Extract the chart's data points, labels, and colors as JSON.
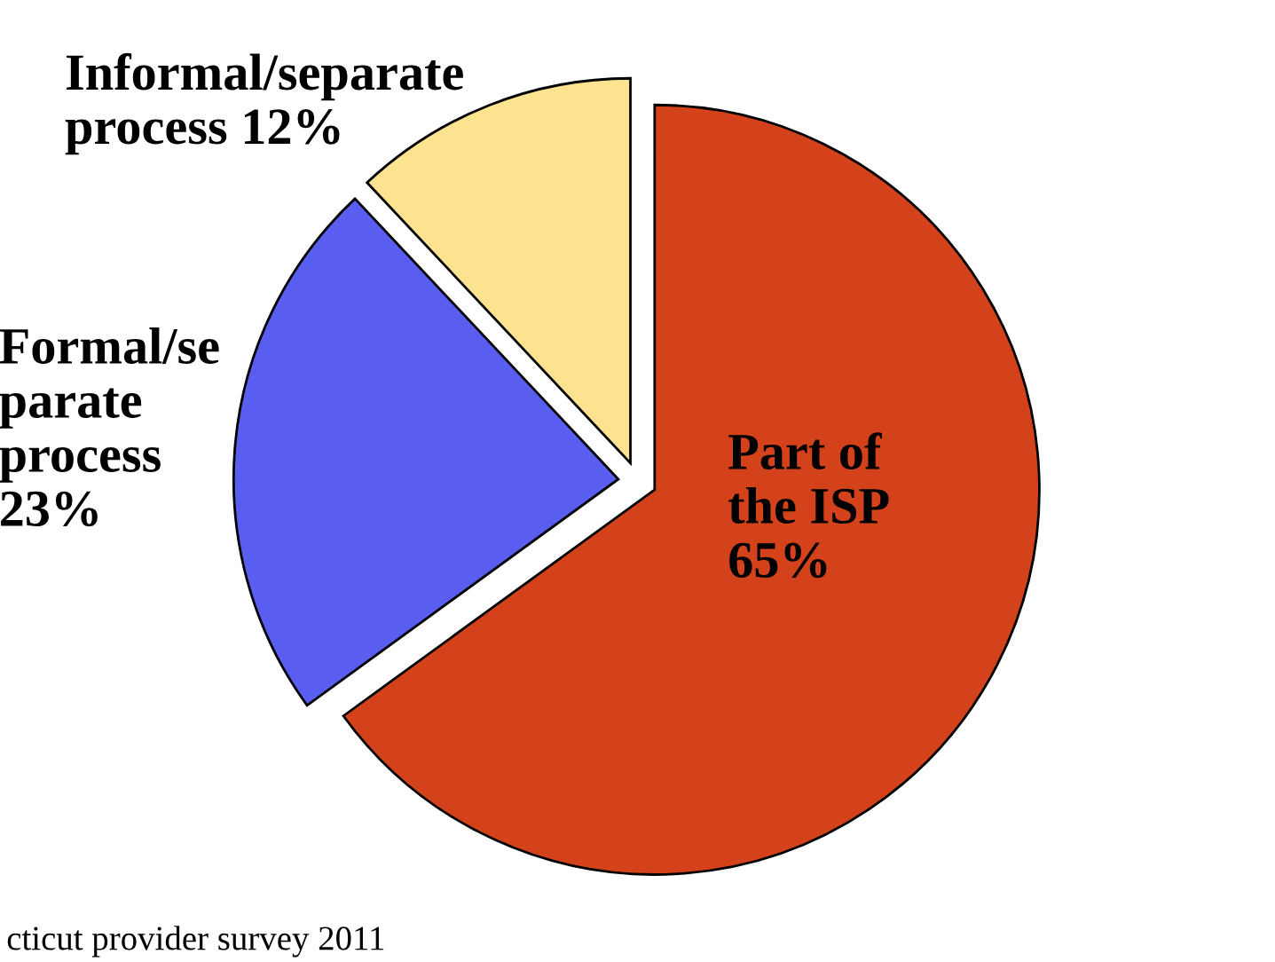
{
  "chart_data": {
    "type": "pie",
    "categories": [
      "Part of\nthe ISP",
      "Formal/se\nparate\nprocess",
      "Informal/separate\nprocess"
    ],
    "values": [
      65,
      23,
      12
    ],
    "colors": [
      "#d4421c",
      "#5a5ef0",
      "#fde28f"
    ],
    "value_labels": [
      "65%",
      "23%",
      "12%"
    ],
    "annotations": [
      "cticut provider survey 2011"
    ]
  }
}
